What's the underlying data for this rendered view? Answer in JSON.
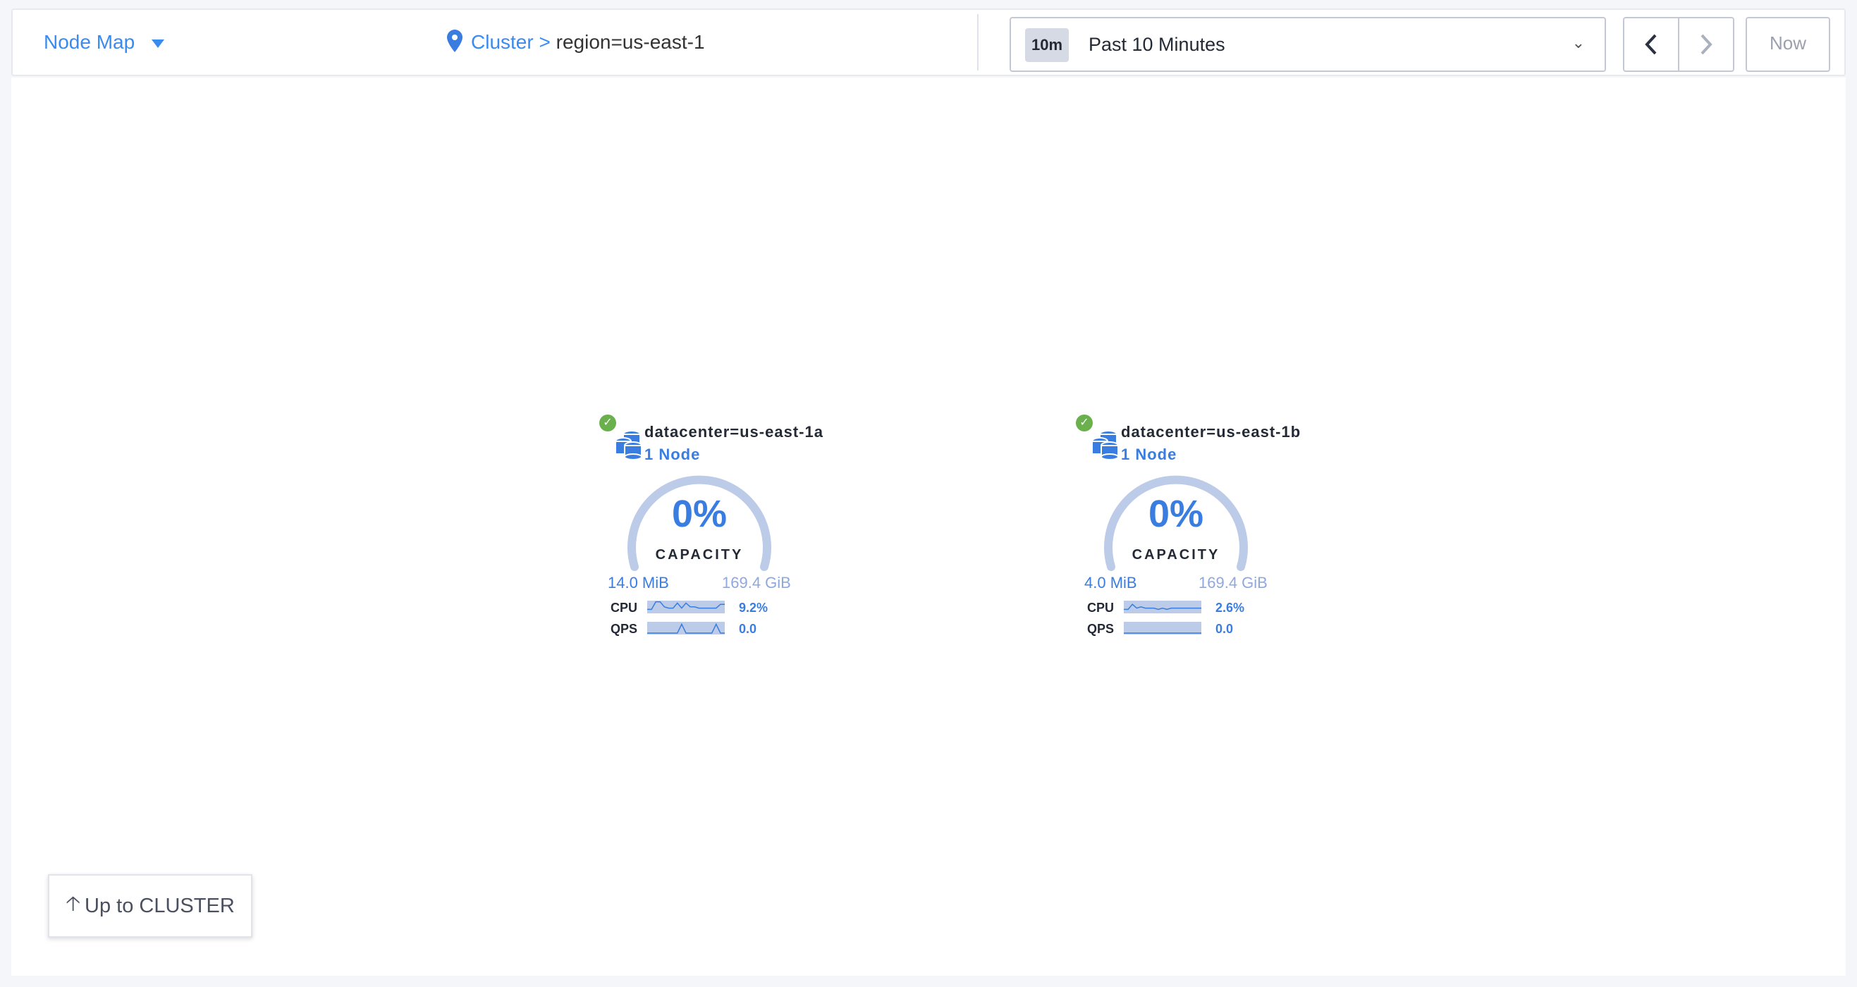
{
  "header": {
    "view_selector": "Node Map",
    "breadcrumb": {
      "root": "Cluster",
      "separator": ">",
      "current": "region=us-east-1"
    },
    "time_range": {
      "badge": "10m",
      "label": "Past 10 Minutes"
    },
    "prev_icon": "chevron-left-icon",
    "next_icon": "chevron-right-icon",
    "now_label": "Now"
  },
  "localities": [
    {
      "name": "datacenter=us-east-1a",
      "nodes": "1 Node",
      "status": "healthy",
      "capacity_pct": "0%",
      "capacity_label": "CAPACITY",
      "capacity_fraction": 0.0,
      "used": "14.0 MiB",
      "total": "169.4 GiB",
      "cpu_label": "CPU",
      "cpu_value": "9.2%",
      "cpu_spark": [
        2,
        2,
        8,
        8,
        4,
        3,
        3,
        7,
        3,
        7,
        4,
        4,
        3,
        3,
        3,
        3,
        3,
        6,
        6
      ],
      "qps_label": "QPS",
      "qps_value": "0.0",
      "qps_spark": [
        0,
        0,
        0,
        0,
        0,
        0,
        0,
        0,
        7,
        0,
        0,
        0,
        0,
        0,
        0,
        0,
        7,
        0,
        0
      ]
    },
    {
      "name": "datacenter=us-east-1b",
      "nodes": "1 Node",
      "status": "healthy",
      "capacity_pct": "0%",
      "capacity_label": "CAPACITY",
      "capacity_fraction": 0.0,
      "used": "4.0 MiB",
      "total": "169.4 GiB",
      "cpu_label": "CPU",
      "cpu_value": "2.6%",
      "cpu_spark": [
        2,
        2,
        6,
        3,
        4,
        3,
        3,
        3,
        2,
        3,
        2,
        3,
        3,
        3,
        3,
        3,
        3,
        3,
        3
      ],
      "qps_label": "QPS",
      "qps_value": "0.0",
      "qps_spark": [
        0,
        0,
        0,
        0,
        0,
        0,
        0,
        0,
        0,
        0,
        0,
        0,
        0,
        0,
        0,
        0,
        0,
        0,
        0
      ]
    }
  ],
  "footer": {
    "up_label": "Up to CLUSTER"
  },
  "colors": {
    "accent": "#3a7de0",
    "link": "#3a8bf0",
    "healthy": "#6ab04c",
    "gauge_track": "#bccbe8"
  }
}
